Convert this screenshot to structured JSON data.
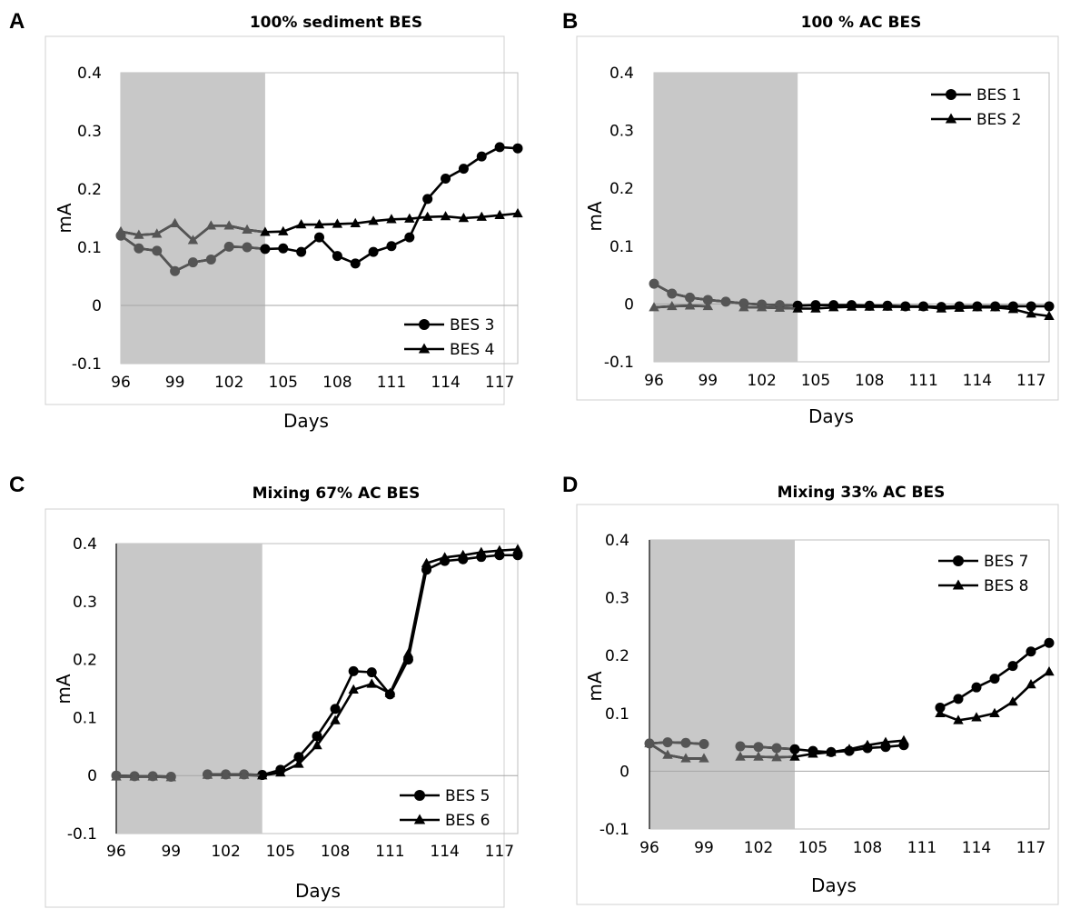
{
  "panels": [
    {
      "letter": "A",
      "chart_data": {
        "type": "line",
        "title": "100% sediment BES",
        "xlabel": "Days",
        "ylabel": "mA",
        "xlim": [
          96,
          118
        ],
        "ylim": [
          -0.1,
          0.4
        ],
        "xticks": [
          "96",
          "99",
          "102",
          "105",
          "108",
          "111",
          "114",
          "117"
        ],
        "yticks": [
          "0.4",
          "0.3",
          "0.2",
          "0.1",
          "0",
          "-0.1"
        ],
        "shaded_region": [
          96,
          104
        ],
        "legend_position": "bottom-right",
        "series": [
          {
            "name": "BES 3",
            "marker": "circle",
            "x": [
              96,
              97,
              98,
              99,
              100,
              101,
              102,
              103,
              104,
              105,
              106,
              107,
              108,
              109,
              110,
              111,
              112,
              113,
              114,
              115,
              116,
              117,
              118
            ],
            "y": [
              0.12,
              0.098,
              0.094,
              0.059,
              0.074,
              0.079,
              0.101,
              0.1,
              0.097,
              0.098,
              0.092,
              0.117,
              0.085,
              0.072,
              0.092,
              0.102,
              0.117,
              0.183,
              0.218,
              0.235,
              0.256,
              0.272,
              0.27
            ]
          },
          {
            "name": "BES 4",
            "marker": "triangle",
            "x": [
              96,
              97,
              98,
              99,
              100,
              101,
              102,
              103,
              104,
              105,
              106,
              107,
              108,
              109,
              110,
              111,
              112,
              113,
              114,
              115,
              116,
              117,
              118
            ],
            "y": [
              0.127,
              0.121,
              0.123,
              0.141,
              0.112,
              0.137,
              0.137,
              0.13,
              0.126,
              0.127,
              0.139,
              0.139,
              0.14,
              0.141,
              0.145,
              0.148,
              0.149,
              0.152,
              0.153,
              0.15,
              0.152,
              0.155,
              0.158
            ]
          }
        ]
      }
    },
    {
      "letter": "B",
      "chart_data": {
        "type": "line",
        "title": "100 % AC BES",
        "xlabel": "Days",
        "ylabel": "mA",
        "xlim": [
          96,
          118
        ],
        "ylim": [
          -0.1,
          0.4
        ],
        "xticks": [
          "96",
          "99",
          "102",
          "105",
          "108",
          "111",
          "114",
          "117"
        ],
        "yticks": [
          "0.4",
          "0.3",
          "0.2",
          "0.1",
          "0",
          "-0.1"
        ],
        "shaded_region": [
          96,
          104
        ],
        "legend_position": "top-right",
        "series": [
          {
            "name": "BES 1",
            "marker": "circle",
            "x": [
              96,
              97,
              98,
              99,
              100,
              101,
              102,
              103,
              104,
              105,
              106,
              107,
              108,
              109,
              110,
              111,
              112,
              113,
              114,
              115,
              116,
              117,
              118
            ],
            "y": [
              0.035,
              0.018,
              0.011,
              0.007,
              0.004,
              0.001,
              -0.001,
              -0.002,
              -0.003,
              -0.002,
              -0.002,
              -0.002,
              -0.003,
              -0.003,
              -0.004,
              -0.004,
              -0.005,
              -0.004,
              -0.004,
              -0.004,
              -0.004,
              -0.004,
              -0.004
            ]
          },
          {
            "name": "BES 2",
            "marker": "triangle",
            "x": [
              96,
              97,
              98,
              99,
              null,
              101,
              102,
              103,
              104,
              105,
              106,
              107,
              108,
              109,
              110,
              111,
              112,
              113,
              114,
              115,
              116,
              117,
              118
            ],
            "y": [
              -0.006,
              -0.004,
              -0.003,
              -0.004,
              null,
              -0.006,
              -0.006,
              -0.007,
              -0.008,
              -0.008,
              -0.006,
              -0.005,
              -0.005,
              -0.005,
              -0.005,
              -0.005,
              -0.008,
              -0.007,
              -0.006,
              -0.006,
              -0.009,
              -0.017,
              -0.021
            ]
          }
        ]
      }
    },
    {
      "letter": "C",
      "chart_data": {
        "type": "line",
        "title": "Mixing 67% AC BES",
        "xlabel": "Days",
        "ylabel": "mA",
        "xlim": [
          96,
          118
        ],
        "ylim": [
          -0.1,
          0.4
        ],
        "xticks": [
          "96",
          "99",
          "102",
          "105",
          "108",
          "111",
          "114",
          "117"
        ],
        "yticks": [
          "0.4",
          "0.3",
          "0.2",
          "0.1",
          "0",
          "-0.1"
        ],
        "shaded_region": [
          96,
          104
        ],
        "legend_position": "bottom-right",
        "series": [
          {
            "name": "BES 5",
            "marker": "circle",
            "x": [
              96,
              97,
              98,
              99,
              null,
              101,
              102,
              103,
              104,
              105,
              106,
              107,
              108,
              109,
              110,
              111,
              112,
              113,
              114,
              115,
              116,
              117,
              118
            ],
            "y": [
              0.0,
              -0.001,
              -0.001,
              -0.002,
              null,
              0.002,
              0.002,
              0.002,
              0.001,
              0.01,
              0.032,
              0.068,
              0.115,
              0.18,
              0.178,
              0.14,
              0.2,
              0.355,
              0.37,
              0.373,
              0.377,
              0.38,
              0.38
            ]
          },
          {
            "name": "BES 6",
            "marker": "triangle",
            "x": [
              96,
              97,
              98,
              99,
              null,
              101,
              102,
              103,
              104,
              105,
              106,
              107,
              108,
              109,
              110,
              111,
              112,
              113,
              114,
              115,
              116,
              117,
              118
            ],
            "y": [
              -0.002,
              -0.002,
              -0.002,
              -0.003,
              null,
              0.001,
              0.001,
              0.001,
              0.0,
              0.005,
              0.02,
              0.052,
              0.095,
              0.148,
              0.158,
              0.142,
              0.21,
              0.366,
              0.376,
              0.38,
              0.385,
              0.388,
              0.39
            ]
          }
        ]
      }
    },
    {
      "letter": "D",
      "chart_data": {
        "type": "line",
        "title": "Mixing 33% AC BES",
        "xlabel": "Days",
        "ylabel": "mA",
        "xlim": [
          96,
          118
        ],
        "ylim": [
          -0.1,
          0.4
        ],
        "xticks": [
          "96",
          "99",
          "102",
          "105",
          "108",
          "111",
          "114",
          "117"
        ],
        "yticks": [
          "0.4",
          "0.3",
          "0.2",
          "0.1",
          "0",
          "-0.1"
        ],
        "shaded_region": [
          96,
          104
        ],
        "legend_position": "top-right",
        "series": [
          {
            "name": "BES 7",
            "marker": "circle",
            "x": [
              96,
              97,
              98,
              99,
              null,
              101,
              102,
              103,
              104,
              105,
              106,
              107,
              108,
              109,
              110,
              null,
              112,
              113,
              114,
              115,
              116,
              117,
              118
            ],
            "y": [
              0.048,
              0.05,
              0.049,
              0.047,
              null,
              0.043,
              0.042,
              0.04,
              0.038,
              0.035,
              0.033,
              0.035,
              0.04,
              0.042,
              0.045,
              null,
              0.11,
              0.125,
              0.145,
              0.16,
              0.182,
              0.207,
              0.222
            ]
          },
          {
            "name": "BES 8",
            "marker": "triangle",
            "x": [
              96,
              97,
              98,
              99,
              null,
              101,
              102,
              103,
              104,
              105,
              106,
              107,
              108,
              109,
              110,
              null,
              112,
              113,
              114,
              115,
              116,
              117,
              118
            ],
            "y": [
              0.048,
              0.028,
              0.022,
              0.022,
              null,
              0.025,
              0.025,
              0.024,
              0.025,
              0.03,
              0.033,
              0.038,
              0.045,
              0.05,
              0.053,
              null,
              0.1,
              0.088,
              0.093,
              0.1,
              0.12,
              0.15,
              0.172
            ]
          }
        ]
      }
    }
  ]
}
